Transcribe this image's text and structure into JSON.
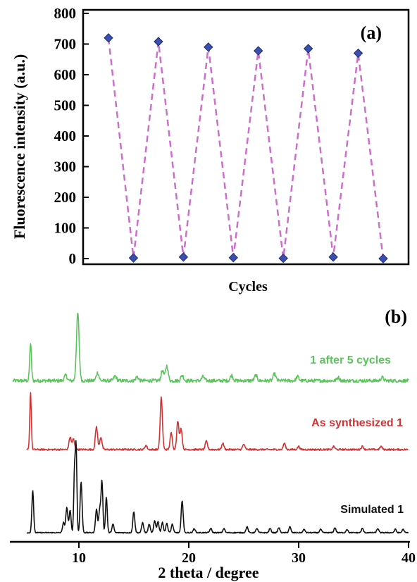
{
  "chart_data": [
    {
      "panel_label": "(a)",
      "type": "line",
      "xlabel": "Cycles",
      "ylabel": "Fluorescence intensity (a.u.)",
      "ylim": [
        0,
        800
      ],
      "yticks": [
        "0",
        "100",
        "200",
        "300",
        "400",
        "500",
        "600",
        "700",
        "800"
      ],
      "x": [
        1,
        2,
        3,
        4,
        5,
        6,
        7,
        8,
        9,
        10,
        11,
        12
      ],
      "values": [
        720,
        2,
        708,
        5,
        690,
        3,
        678,
        1,
        685,
        5,
        670,
        0
      ],
      "line_color": "#cc6fcc",
      "marker_color": "#3a4fb0",
      "line_style": "dashed",
      "marker": "diamond"
    },
    {
      "panel_label": "(b)",
      "type": "line",
      "xlabel": "2 theta / degree",
      "xlim": [
        5,
        40
      ],
      "xticks": [
        "10",
        "20",
        "30",
        "40"
      ],
      "series": [
        {
          "name": "1 after 5 cycles",
          "color": "#5cc45c",
          "baseline": 0.08,
          "noise": 0.025,
          "peaks": [
            [
              5.6,
              0.55,
              0.08
            ],
            [
              8.8,
              0.08,
              0.12
            ],
            [
              9.9,
              1.0,
              0.12
            ],
            [
              11.7,
              0.12,
              0.12
            ],
            [
              13.3,
              0.07,
              0.12
            ],
            [
              15.3,
              0.06,
              0.12
            ],
            [
              17.6,
              0.15,
              0.12
            ],
            [
              18.0,
              0.22,
              0.12
            ],
            [
              19.4,
              0.08,
              0.12
            ],
            [
              21.3,
              0.06,
              0.12
            ],
            [
              23.9,
              0.08,
              0.12
            ],
            [
              26.1,
              0.08,
              0.12
            ],
            [
              27.8,
              0.1,
              0.12
            ],
            [
              29.9,
              0.06,
              0.12
            ],
            [
              33.6,
              0.05,
              0.12
            ],
            [
              37.6,
              0.05,
              0.12
            ]
          ]
        },
        {
          "name": "As synthesized 1",
          "color": "#d23232",
          "baseline": 0.0,
          "noise": 0.008,
          "peaks": [
            [
              5.6,
              0.55,
              0.07
            ],
            [
              9.2,
              0.12,
              0.1
            ],
            [
              9.5,
              0.1,
              0.1
            ],
            [
              11.6,
              0.22,
              0.1
            ],
            [
              12.0,
              0.12,
              0.1
            ],
            [
              16.1,
              0.04,
              0.1
            ],
            [
              17.5,
              0.5,
              0.1
            ],
            [
              18.4,
              0.16,
              0.1
            ],
            [
              19.0,
              0.27,
              0.1
            ],
            [
              19.3,
              0.2,
              0.1
            ],
            [
              21.6,
              0.08,
              0.1
            ],
            [
              23.1,
              0.06,
              0.1
            ],
            [
              25.0,
              0.05,
              0.1
            ],
            [
              28.7,
              0.06,
              0.1
            ],
            [
              30.0,
              0.03,
              0.1
            ],
            [
              33.2,
              0.03,
              0.1
            ],
            [
              35.8,
              0.03,
              0.1
            ],
            [
              37.5,
              0.03,
              0.1
            ]
          ]
        },
        {
          "name": "Simulated 1",
          "color": "#111111",
          "baseline": 0.0,
          "noise": 0.006,
          "peaks": [
            [
              5.8,
              0.5,
              0.08
            ],
            [
              8.6,
              0.12,
              0.09
            ],
            [
              8.9,
              0.3,
              0.09
            ],
            [
              9.2,
              0.26,
              0.09
            ],
            [
              9.6,
              0.72,
              0.07
            ],
            [
              9.75,
              1.0,
              0.07
            ],
            [
              10.2,
              0.6,
              0.09
            ],
            [
              11.6,
              0.28,
              0.09
            ],
            [
              11.9,
              0.28,
              0.09
            ],
            [
              12.1,
              0.6,
              0.08
            ],
            [
              12.5,
              0.42,
              0.08
            ],
            [
              13.1,
              0.1,
              0.09
            ],
            [
              15.0,
              0.25,
              0.09
            ],
            [
              15.8,
              0.12,
              0.09
            ],
            [
              16.4,
              0.1,
              0.09
            ],
            [
              16.9,
              0.14,
              0.09
            ],
            [
              17.2,
              0.13,
              0.09
            ],
            [
              17.6,
              0.12,
              0.09
            ],
            [
              18.0,
              0.11,
              0.09
            ],
            [
              18.5,
              0.1,
              0.09
            ],
            [
              19.4,
              0.38,
              0.09
            ],
            [
              20.5,
              0.05,
              0.09
            ],
            [
              22.0,
              0.05,
              0.09
            ],
            [
              23.2,
              0.05,
              0.09
            ],
            [
              25.3,
              0.07,
              0.09
            ],
            [
              26.2,
              0.05,
              0.09
            ],
            [
              27.4,
              0.05,
              0.09
            ],
            [
              28.2,
              0.06,
              0.09
            ],
            [
              29.2,
              0.07,
              0.09
            ],
            [
              30.5,
              0.04,
              0.09
            ],
            [
              32.0,
              0.04,
              0.09
            ],
            [
              33.3,
              0.06,
              0.09
            ],
            [
              34.4,
              0.04,
              0.09
            ],
            [
              35.8,
              0.05,
              0.09
            ],
            [
              37.2,
              0.05,
              0.09
            ],
            [
              38.8,
              0.04,
              0.09
            ],
            [
              39.5,
              0.04,
              0.09
            ]
          ]
        }
      ]
    }
  ]
}
